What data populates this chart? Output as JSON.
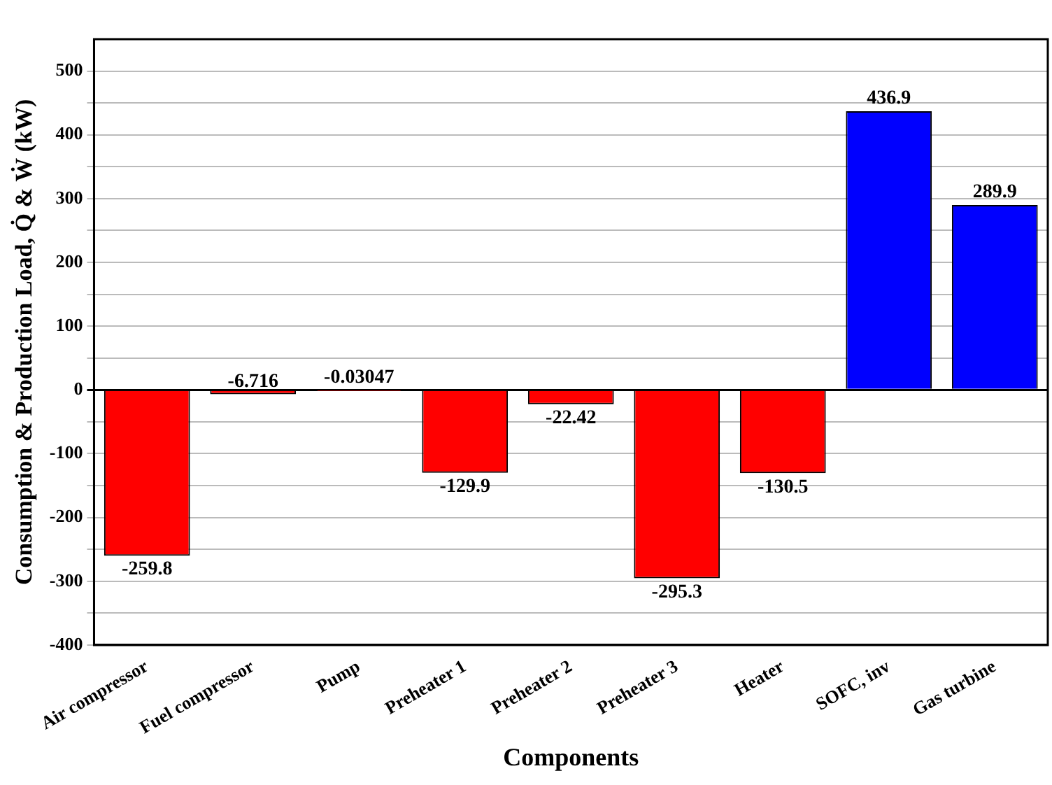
{
  "chart_data": {
    "type": "bar",
    "xlabel": "Components",
    "ylabel": "Consumption & Production Load, Q̇ & Ẇ (kW)",
    "categories": [
      "Air compressor",
      "Fuel compressor",
      "Pump",
      "Preheater 1",
      "Preheater 2",
      "Preheater 3",
      "Heater",
      "SOFC, inv",
      "Gas turbine"
    ],
    "values": [
      -259.8,
      -6.716,
      -0.03047,
      -129.9,
      -22.42,
      -295.3,
      -130.5,
      436.9,
      289.9
    ],
    "colors": [
      "#ff0000",
      "#ff0000",
      "#ff0000",
      "#ff0000",
      "#ff0000",
      "#ff0000",
      "#ff0000",
      "#0000ff",
      "#0000ff"
    ],
    "ylim": [
      -400,
      550
    ],
    "yticks": [
      -400,
      {
        "value": -350,
        "label": null
      },
      -300,
      {
        "value": -250,
        "label": null
      },
      -200,
      {
        "value": -150,
        "label": null
      },
      -100,
      {
        "value": -50,
        "label": null
      },
      0,
      {
        "value": 50,
        "label": null
      },
      100,
      {
        "value": 150,
        "label": null
      },
      200,
      {
        "value": 250,
        "label": null
      },
      300,
      {
        "value": 350,
        "label": null
      },
      400,
      {
        "value": 450,
        "label": null
      },
      500
    ],
    "grid": "y",
    "data_labels": true,
    "legend": false
  }
}
